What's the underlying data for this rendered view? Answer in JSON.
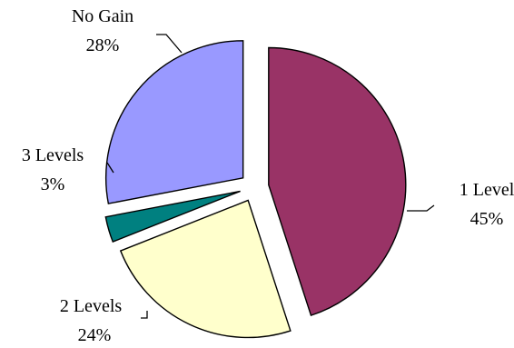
{
  "chart_data": {
    "type": "pie",
    "title": "",
    "exploded": true,
    "start_angle_deg": 0,
    "direction": "clockwise",
    "slices": [
      {
        "label": "1 Level",
        "percent_label": "45%",
        "value": 45,
        "color": "#993366"
      },
      {
        "label": "2 Levels",
        "percent_label": "24%",
        "value": 24,
        "color": "#FFFFCC"
      },
      {
        "label": "3 Levels",
        "percent_label": "3%",
        "value": 3,
        "color": "#008080"
      },
      {
        "label": "No Gain",
        "percent_label": "28%",
        "value": 28,
        "color": "#9999FF"
      }
    ],
    "legend": "none",
    "data_labels": "outside with leader lines"
  }
}
